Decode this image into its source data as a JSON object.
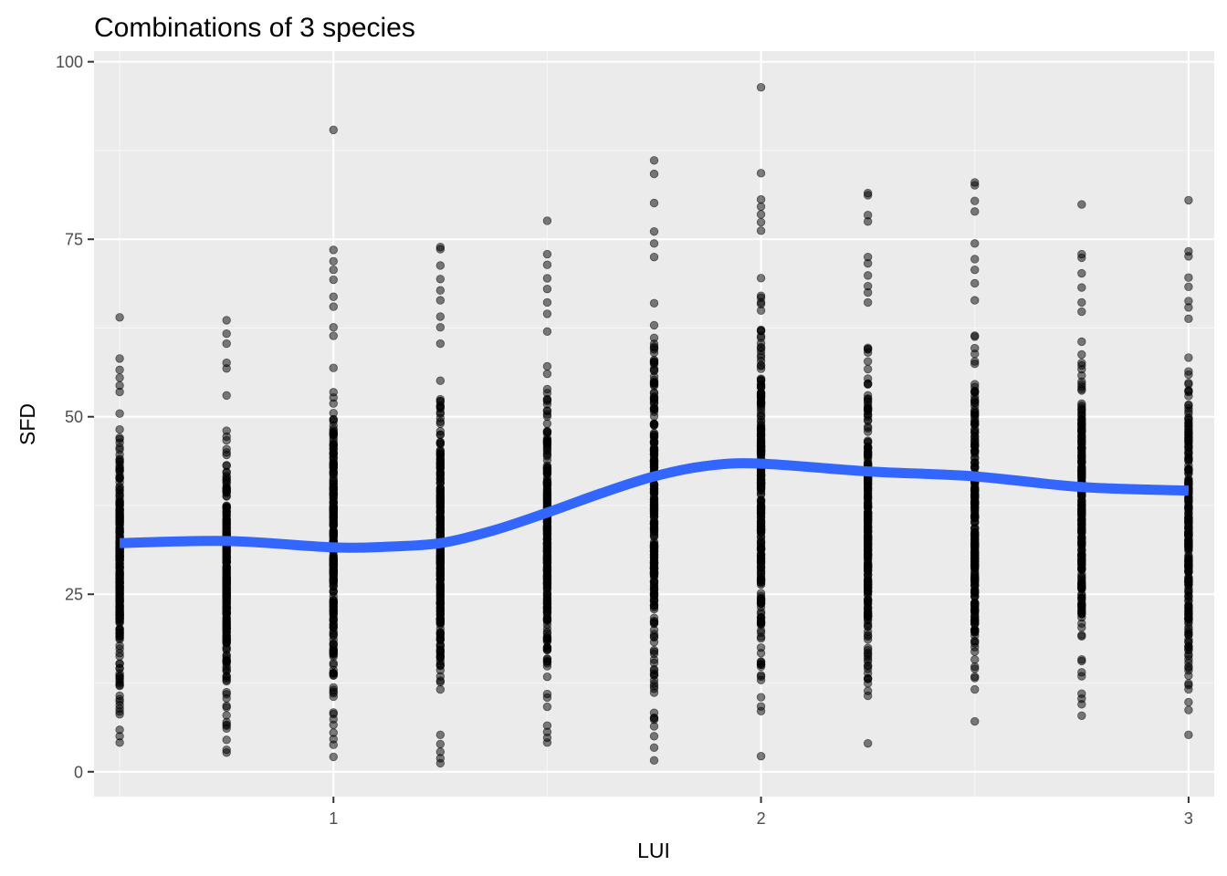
{
  "colors": {
    "panel_background": "#EBEBEB",
    "grid_major": "#FFFFFF",
    "grid_minor": "#F7F7F7",
    "points": "#000000",
    "smooth_line": "#3366FF",
    "tick_text": "#4D4D4D",
    "tick_mark": "#333333"
  },
  "chart_data": {
    "type": "scatter",
    "title": "Combinations of 3 species",
    "xlabel": "LUI",
    "ylabel": "SFD",
    "xlim": [
      0.44,
      3.06
    ],
    "ylim": [
      -3.5,
      101.5
    ],
    "x_ticks": [
      1,
      2,
      3
    ],
    "x_tick_labels": [
      "1",
      "2",
      "3"
    ],
    "y_ticks": [
      0,
      25,
      50,
      75,
      100
    ],
    "y_tick_labels": [
      "0",
      "25",
      "50",
      "75",
      "100"
    ],
    "grid": true,
    "legend": "none",
    "point_alpha": 0.5,
    "points_by_x": [
      {
        "x": 0.5,
        "y_min": 4.1,
        "y_max": 64.0,
        "outliers": [
          4.1,
          5.0,
          5.9,
          8.1,
          8.9,
          9.9,
          53.5,
          54.4,
          55.5,
          56.6,
          58.2,
          64.0
        ]
      },
      {
        "x": 0.75,
        "y_min": 2.7,
        "y_max": 63.6,
        "outliers": [
          2.7,
          3.1,
          6.1,
          7.0,
          53.0,
          56.8,
          57.6,
          60.3,
          61.7,
          63.6
        ]
      },
      {
        "x": 1.0,
        "y_min": 2.1,
        "y_max": 90.4,
        "outliers": [
          2.1,
          3.8,
          4.6,
          5.5,
          6.6,
          61.4,
          62.6,
          65.5,
          66.9,
          69.3,
          70.7,
          71.9,
          73.5,
          90.4
        ]
      },
      {
        "x": 1.25,
        "y_min": 1.2,
        "y_max": 73.9,
        "outliers": [
          1.2,
          1.9,
          2.8,
          3.9,
          5.2,
          60.3,
          62.6,
          64.1,
          66.4,
          67.8,
          69.4,
          71.3,
          73.6,
          73.9
        ]
      },
      {
        "x": 1.5,
        "y_min": 4.1,
        "y_max": 77.6,
        "outliers": [
          4.1,
          4.8,
          5.6,
          6.5,
          62.0,
          64.5,
          66.1,
          68.0,
          69.5,
          71.4,
          72.9,
          77.6
        ]
      },
      {
        "x": 1.75,
        "y_min": 1.6,
        "y_max": 86.1,
        "outliers": [
          1.6,
          3.4,
          5.0,
          6.4,
          8.3,
          72.5,
          74.4,
          76.1,
          80.1,
          84.2,
          86.1
        ]
      },
      {
        "x": 2.0,
        "y_min": 2.2,
        "y_max": 96.4,
        "outliers": [
          2.2,
          9.2,
          10.5,
          13.6,
          14.8,
          76.2,
          77.4,
          78.5,
          79.6,
          80.6,
          84.3,
          96.4
        ]
      },
      {
        "x": 2.25,
        "y_min": 4.0,
        "y_max": 81.5,
        "outliers": [
          4.0,
          10.7,
          13.1,
          14.5,
          66.1,
          67.5,
          68.4,
          69.9,
          71.6,
          72.5,
          77.5,
          78.4,
          81.2,
          81.5
        ]
      },
      {
        "x": 2.5,
        "y_min": 7.1,
        "y_max": 83.0,
        "outliers": [
          7.1,
          11.6,
          13.2,
          14.8,
          66.4,
          68.8,
          70.7,
          72.2,
          74.4,
          78.9,
          80.4,
          82.6,
          83.0
        ]
      },
      {
        "x": 2.75,
        "y_min": 7.9,
        "y_max": 79.9,
        "outliers": [
          7.9,
          9.5,
          10.3,
          11.0,
          14.0,
          64.8,
          66.1,
          68.2,
          70.2,
          72.4,
          72.9,
          79.9
        ]
      },
      {
        "x": 3.0,
        "y_min": 5.2,
        "y_max": 80.5,
        "outliers": [
          5.2,
          8.7,
          9.8,
          12.2,
          14.8,
          63.8,
          65.4,
          66.3,
          68.3,
          69.6,
          72.6,
          73.3,
          80.5
        ]
      }
    ],
    "smooth_series": {
      "x": [
        0.5,
        0.75,
        1.0,
        1.125,
        1.25,
        1.375,
        1.5,
        1.625,
        1.75,
        1.875,
        2.0,
        2.25,
        2.5,
        2.75,
        3.0
      ],
      "y": [
        32.2,
        32.5,
        31.6,
        31.7,
        32.2,
        34.0,
        36.5,
        39.2,
        41.6,
        43.1,
        43.4,
        42.3,
        41.6,
        40.1,
        39.6
      ]
    }
  }
}
